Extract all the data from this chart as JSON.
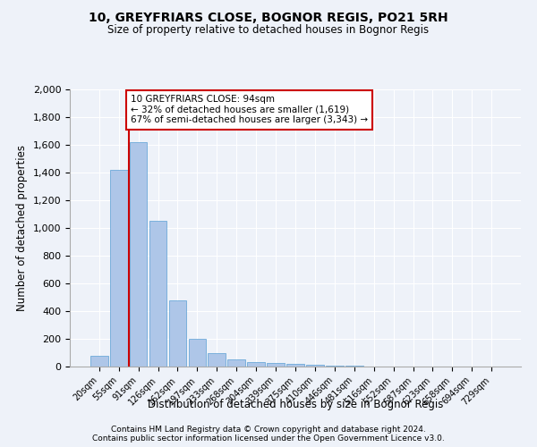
{
  "title1": "10, GREYFRIARS CLOSE, BOGNOR REGIS, PO21 5RH",
  "title2": "Size of property relative to detached houses in Bognor Regis",
  "xlabel": "Distribution of detached houses by size in Bognor Regis",
  "ylabel": "Number of detached properties",
  "categories": [
    "20sqm",
    "55sqm",
    "91sqm",
    "126sqm",
    "162sqm",
    "197sqm",
    "233sqm",
    "268sqm",
    "304sqm",
    "339sqm",
    "375sqm",
    "410sqm",
    "446sqm",
    "481sqm",
    "516sqm",
    "552sqm",
    "587sqm",
    "623sqm",
    "658sqm",
    "694sqm",
    "729sqm"
  ],
  "values": [
    75,
    1420,
    1620,
    1050,
    480,
    200,
    100,
    50,
    35,
    25,
    20,
    15,
    8,
    5,
    3,
    2,
    2,
    1,
    1,
    1,
    1
  ],
  "bar_color": "#aec6e8",
  "bar_edge_color": "#5a9fd4",
  "vline_x_idx": 2,
  "vline_color": "#cc0000",
  "annotation_text": "10 GREYFRIARS CLOSE: 94sqm\n← 32% of detached houses are smaller (1,619)\n67% of semi-detached houses are larger (3,343) →",
  "annotation_box_color": "#ffffff",
  "annotation_box_edge": "#cc0000",
  "footer1": "Contains HM Land Registry data © Crown copyright and database right 2024.",
  "footer2": "Contains public sector information licensed under the Open Government Licence v3.0.",
  "ylim": [
    0,
    2000
  ],
  "yticks": [
    0,
    200,
    400,
    600,
    800,
    1000,
    1200,
    1400,
    1600,
    1800,
    2000
  ],
  "bg_color": "#eef2f9",
  "grid_color": "#ffffff"
}
